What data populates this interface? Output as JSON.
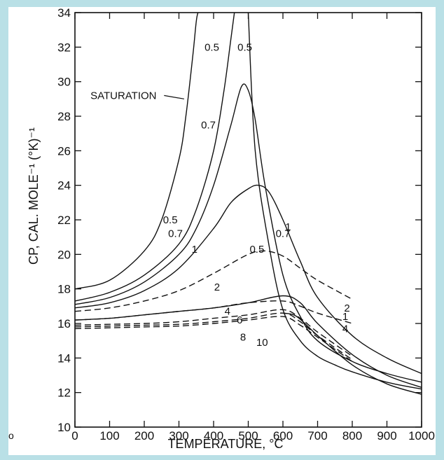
{
  "page": {
    "background": "#b9e0e6",
    "panel_background": "#ffffff",
    "ink": "#111111"
  },
  "stray_mark": "o",
  "chart_data": {
    "type": "line",
    "title": "",
    "xlabel": "TEMPERATURE, °C",
    "ylabel": "CP, CAL. MOLE⁻¹ (°K)⁻¹",
    "xlim": [
      0,
      1000
    ],
    "ylim": [
      10,
      34
    ],
    "x_ticks": [
      0,
      100,
      200,
      300,
      400,
      500,
      600,
      700,
      800,
      900,
      1000
    ],
    "y_ticks": [
      10,
      12,
      14,
      16,
      18,
      20,
      22,
      24,
      26,
      28,
      30,
      32,
      34
    ],
    "grid": false,
    "series": [
      {
        "name": "SATURATION",
        "style": "solid",
        "x": [
          0,
          100,
          200,
          250,
          300,
          320,
          340,
          350,
          355
        ],
        "y": [
          18.0,
          18.5,
          20.2,
          22.0,
          25.5,
          28.0,
          31.5,
          33.5,
          34.0
        ]
      },
      {
        "name": "0.5",
        "style": "solid",
        "x": [
          0,
          100,
          200,
          300,
          350,
          400,
          430,
          450,
          460
        ],
        "y": [
          17.3,
          17.8,
          18.8,
          20.6,
          22.6,
          26.0,
          29.5,
          32.5,
          34.0
        ]
      },
      {
        "name": "0.5",
        "style": "solid",
        "x": [
          500,
          520,
          560,
          600,
          650,
          700,
          750,
          800,
          900,
          1000
        ],
        "y": [
          34.0,
          26.0,
          20.5,
          16.8,
          15.0,
          14.1,
          13.6,
          13.2,
          12.6,
          12.2
        ]
      },
      {
        "name": "0.7",
        "style": "solid",
        "x": [
          0,
          100,
          200,
          300,
          350,
          400,
          450,
          480,
          500,
          520,
          550,
          600,
          650,
          700,
          800,
          900,
          1000
        ],
        "y": [
          17.1,
          17.5,
          18.4,
          20.0,
          21.5,
          24.0,
          27.5,
          29.7,
          29.5,
          27.8,
          23.8,
          18.8,
          16.4,
          15.0,
          13.8,
          13.1,
          12.6
        ]
      },
      {
        "name": "1",
        "style": "solid",
        "x": [
          0,
          100,
          200,
          300,
          400,
          450,
          500,
          530,
          560,
          600,
          650,
          700,
          800,
          900,
          1000
        ],
        "y": [
          16.9,
          17.2,
          17.9,
          19.2,
          21.5,
          23.0,
          23.8,
          24.0,
          23.6,
          22.0,
          19.6,
          17.5,
          15.3,
          14.0,
          13.1
        ]
      },
      {
        "name": "2",
        "style": "dashed",
        "x": [
          0,
          100,
          200,
          300,
          400,
          500,
          550,
          600,
          650,
          700,
          800
        ],
        "y": [
          16.7,
          16.9,
          17.3,
          17.9,
          18.9,
          20.0,
          20.2,
          19.9,
          19.2,
          18.5,
          17.4
        ]
      },
      {
        "name": "4",
        "style": "dashed",
        "x": [
          0,
          100,
          200,
          300,
          400,
          500,
          600,
          650,
          700,
          800
        ],
        "y": [
          16.2,
          16.3,
          16.5,
          16.7,
          16.9,
          17.2,
          17.3,
          17.0,
          16.6,
          16.0
        ]
      },
      {
        "name": "4",
        "style": "solid",
        "x": [
          0,
          100,
          200,
          300,
          400,
          500,
          600,
          650,
          700,
          800,
          900,
          1000
        ],
        "y": [
          16.2,
          16.3,
          16.5,
          16.7,
          16.9,
          17.2,
          17.6,
          17.2,
          16.0,
          14.2,
          13.0,
          12.3
        ]
      },
      {
        "name": "6",
        "style": "dashed",
        "x": [
          0,
          100,
          200,
          300,
          400,
          500,
          600,
          650,
          700,
          800
        ],
        "y": [
          15.9,
          15.95,
          16.0,
          16.1,
          16.3,
          16.5,
          16.8,
          16.3,
          15.5,
          14.1
        ]
      },
      {
        "name": "8",
        "style": "dashed",
        "x": [
          0,
          100,
          200,
          300,
          400,
          500,
          600,
          650,
          700,
          800
        ],
        "y": [
          15.8,
          15.85,
          15.9,
          15.95,
          16.1,
          16.3,
          16.6,
          16.1,
          15.3,
          13.9
        ]
      },
      {
        "name": "10",
        "style": "dashed",
        "x": [
          0,
          100,
          200,
          300,
          400,
          500,
          600,
          650,
          700,
          800
        ],
        "y": [
          15.7,
          15.75,
          15.8,
          15.85,
          16.0,
          16.2,
          16.4,
          15.9,
          15.2,
          13.8
        ]
      },
      {
        "name": "",
        "style": "solid",
        "x": [
          600,
          640,
          700,
          800,
          900,
          1000
        ],
        "y": [
          16.6,
          16.4,
          15.3,
          13.6,
          12.5,
          11.9
        ]
      }
    ],
    "annotations": [
      {
        "text": "SATURATION",
        "x": 140,
        "y": 29.2
      },
      {
        "text": "0.5",
        "x": 395,
        "y": 32.0
      },
      {
        "text": "0.5",
        "x": 490,
        "y": 32.0
      },
      {
        "text": "0.7",
        "x": 385,
        "y": 27.5
      },
      {
        "text": "0.5",
        "x": 275,
        "y": 22.0
      },
      {
        "text": "0.7",
        "x": 290,
        "y": 21.2
      },
      {
        "text": "1",
        "x": 345,
        "y": 20.3
      },
      {
        "text": "2",
        "x": 410,
        "y": 18.1
      },
      {
        "text": "1",
        "x": 615,
        "y": 21.6
      },
      {
        "text": "0.7",
        "x": 600,
        "y": 21.2
      },
      {
        "text": "0.5",
        "x": 525,
        "y": 20.3
      },
      {
        "text": "4",
        "x": 440,
        "y": 16.7
      },
      {
        "text": "6",
        "x": 475,
        "y": 16.2
      },
      {
        "text": "8",
        "x": 485,
        "y": 15.2
      },
      {
        "text": "10",
        "x": 540,
        "y": 14.9
      },
      {
        "text": "2",
        "x": 785,
        "y": 16.9
      },
      {
        "text": "1",
        "x": 780,
        "y": 16.4
      },
      {
        "text": "4",
        "x": 780,
        "y": 15.7
      }
    ]
  }
}
